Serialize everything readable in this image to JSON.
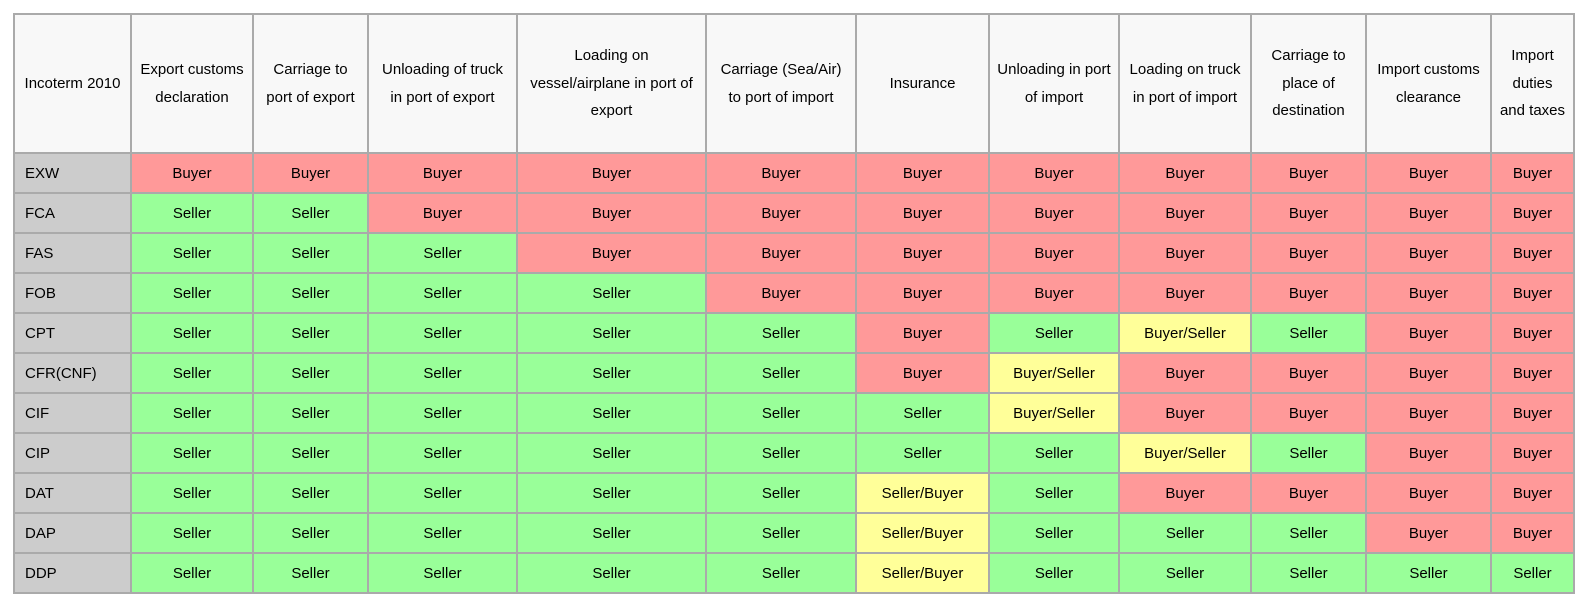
{
  "table": {
    "columns": [
      "Incoterm 2010",
      "Export customs declaration",
      "Carriage to port of export",
      "Unloading of truck in port of export",
      "Loading on vessel/airplane in port of export",
      "Carriage (Sea/Air) to port of import",
      "Insurance",
      "Unloading in port of import",
      "Loading on truck in port of import",
      "Carriage to place of destination",
      "Import customs clearance",
      "Import duties and taxes"
    ],
    "rows": [
      {
        "label": "EXW",
        "cells": [
          "Buyer",
          "Buyer",
          "Buyer",
          "Buyer",
          "Buyer",
          "Buyer",
          "Buyer",
          "Buyer",
          "Buyer",
          "Buyer",
          "Buyer"
        ]
      },
      {
        "label": "FCA",
        "cells": [
          "Seller",
          "Seller",
          "Buyer",
          "Buyer",
          "Buyer",
          "Buyer",
          "Buyer",
          "Buyer",
          "Buyer",
          "Buyer",
          "Buyer"
        ]
      },
      {
        "label": "FAS",
        "cells": [
          "Seller",
          "Seller",
          "Seller",
          "Buyer",
          "Buyer",
          "Buyer",
          "Buyer",
          "Buyer",
          "Buyer",
          "Buyer",
          "Buyer"
        ]
      },
      {
        "label": "FOB",
        "cells": [
          "Seller",
          "Seller",
          "Seller",
          "Seller",
          "Buyer",
          "Buyer",
          "Buyer",
          "Buyer",
          "Buyer",
          "Buyer",
          "Buyer"
        ]
      },
      {
        "label": "CPT",
        "cells": [
          "Seller",
          "Seller",
          "Seller",
          "Seller",
          "Seller",
          "Buyer",
          "Seller",
          "Buyer/Seller",
          "Seller",
          "Buyer",
          "Buyer"
        ]
      },
      {
        "label": "CFR(CNF)",
        "cells": [
          "Seller",
          "Seller",
          "Seller",
          "Seller",
          "Seller",
          "Buyer",
          "Buyer/Seller",
          "Buyer",
          "Buyer",
          "Buyer",
          "Buyer"
        ]
      },
      {
        "label": "CIF",
        "cells": [
          "Seller",
          "Seller",
          "Seller",
          "Seller",
          "Seller",
          "Seller",
          "Buyer/Seller",
          "Buyer",
          "Buyer",
          "Buyer",
          "Buyer"
        ]
      },
      {
        "label": "CIP",
        "cells": [
          "Seller",
          "Seller",
          "Seller",
          "Seller",
          "Seller",
          "Seller",
          "Seller",
          "Buyer/Seller",
          "Seller",
          "Buyer",
          "Buyer"
        ]
      },
      {
        "label": "DAT",
        "cells": [
          "Seller",
          "Seller",
          "Seller",
          "Seller",
          "Seller",
          "Seller/Buyer",
          "Seller",
          "Buyer",
          "Buyer",
          "Buyer",
          "Buyer"
        ]
      },
      {
        "label": "DAP",
        "cells": [
          "Seller",
          "Seller",
          "Seller",
          "Seller",
          "Seller",
          "Seller/Buyer",
          "Seller",
          "Seller",
          "Seller",
          "Buyer",
          "Buyer"
        ]
      },
      {
        "label": "DDP",
        "cells": [
          "Seller",
          "Seller",
          "Seller",
          "Seller",
          "Seller",
          "Seller/Buyer",
          "Seller",
          "Seller",
          "Seller",
          "Seller",
          "Seller"
        ]
      }
    ]
  },
  "colors": {
    "buyer": "#ff9999",
    "seller": "#99ff99",
    "shared": "#ffff99",
    "label_bg": "#cccccc",
    "header_bg": "#f8f8f8",
    "border": "#aaaaaa"
  }
}
